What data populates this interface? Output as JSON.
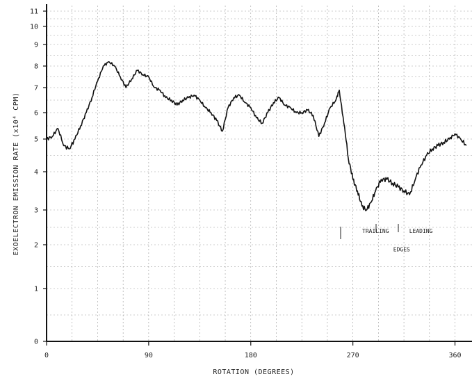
{
  "chart_data": {
    "type": "line",
    "title": "",
    "xlabel": "ROTATION  (DEGREES)",
    "ylabel": "EXOELECTRON EMISSION RATE  (x10⁴ CPM)",
    "xlim": [
      0,
      370
    ],
    "ylim": [
      0,
      11
    ],
    "y_scale": "nonlinear (compressed above 8)",
    "grid": true,
    "x_ticks": [
      {
        "value": 0,
        "label": "0"
      },
      {
        "value": 90,
        "label": "90"
      },
      {
        "value": 180,
        "label": "180"
      },
      {
        "value": 270,
        "label": "270"
      },
      {
        "value": 360,
        "label": "360"
      }
    ],
    "y_ticks": [
      {
        "value": 0,
        "label": "0"
      },
      {
        "value": 1,
        "label": "1"
      },
      {
        "value": 2,
        "label": "2"
      },
      {
        "value": 3,
        "label": "3"
      },
      {
        "value": 4,
        "label": "4"
      },
      {
        "value": 5,
        "label": "5"
      },
      {
        "value": 6,
        "label": "6"
      },
      {
        "value": 7,
        "label": "7"
      },
      {
        "value": 8,
        "label": "8"
      },
      {
        "value": 9,
        "label": "9"
      },
      {
        "value": 10,
        "label": "10"
      },
      {
        "value": 11,
        "label": "11"
      }
    ],
    "series": [
      {
        "x": [
          0,
          5,
          10,
          15,
          20,
          25,
          30,
          35,
          40,
          45,
          50,
          55,
          60,
          65,
          70,
          75,
          80,
          85,
          90,
          95,
          100,
          105,
          110,
          115,
          120,
          125,
          130,
          135,
          140,
          145,
          150,
          155,
          160,
          165,
          170,
          175,
          180,
          185,
          190,
          195,
          200,
          205,
          210,
          215,
          220,
          225,
          230,
          235,
          240,
          245,
          250,
          255,
          258,
          262,
          266,
          270,
          274,
          278,
          282,
          286,
          290,
          295,
          300,
          305,
          310,
          315,
          320,
          325,
          330,
          335,
          340,
          345,
          350,
          355,
          360,
          365,
          370
        ],
        "y": [
          5.0,
          5.1,
          5.4,
          4.8,
          4.7,
          5.0,
          5.5,
          6.0,
          6.6,
          7.3,
          8.0,
          8.2,
          8.0,
          7.5,
          7.0,
          7.4,
          7.8,
          7.6,
          7.5,
          7.0,
          6.9,
          6.6,
          6.5,
          6.3,
          6.5,
          6.6,
          6.7,
          6.5,
          6.2,
          6.0,
          5.7,
          5.3,
          6.2,
          6.6,
          6.7,
          6.4,
          6.2,
          5.8,
          5.6,
          6.0,
          6.4,
          6.6,
          6.3,
          6.2,
          6.0,
          6.0,
          6.1,
          5.9,
          5.1,
          5.6,
          6.2,
          6.5,
          6.9,
          5.6,
          4.4,
          3.8,
          3.5,
          3.1,
          3.0,
          3.2,
          3.5,
          3.8,
          3.8,
          3.7,
          3.6,
          3.5,
          3.4,
          3.8,
          4.2,
          4.5,
          4.7,
          4.8,
          4.9,
          5.0,
          5.2,
          5.0,
          4.8
        ]
      }
    ],
    "annotations": [
      {
        "text": "TRAILING",
        "x": 290,
        "y": 2.4
      },
      {
        "text": "LEADING",
        "x": 330,
        "y": 2.4
      },
      {
        "text": "EDGES",
        "x": 313,
        "y": 1.9
      }
    ]
  }
}
